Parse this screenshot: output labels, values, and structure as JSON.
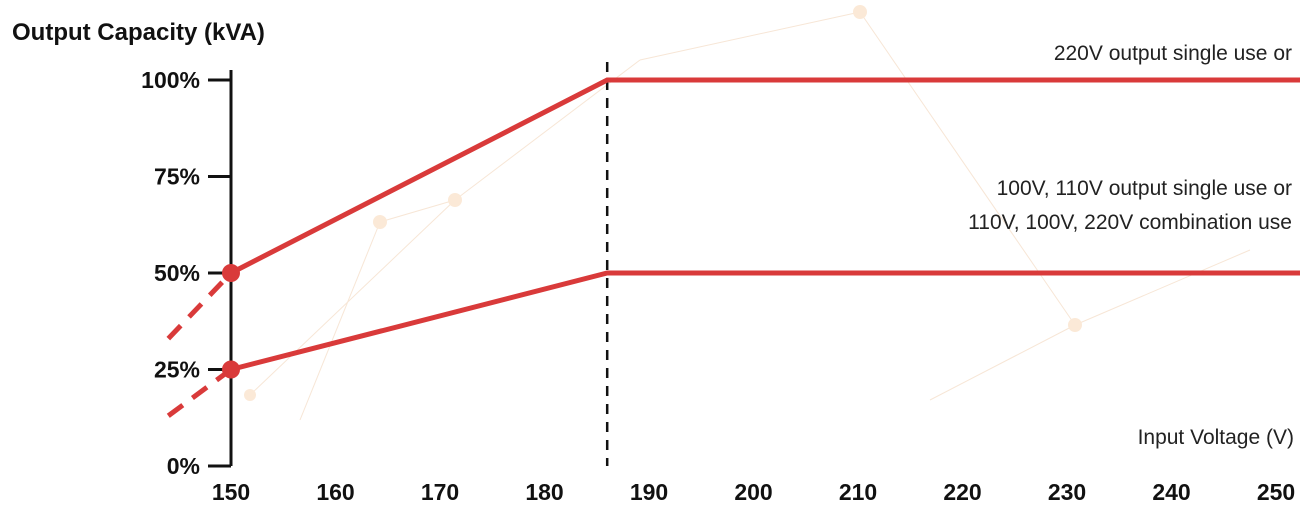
{
  "chart_data": {
    "type": "line",
    "ylabel": "Output Capacity (kVA)",
    "xlabel": "Input Voltage (V)",
    "xlim": [
      150,
      253
    ],
    "ylim": [
      0,
      100
    ],
    "x_ticks": [
      150,
      160,
      170,
      180,
      190,
      200,
      210,
      220,
      230,
      240,
      250
    ],
    "y_ticks": [
      {
        "value": 0,
        "label": "0%"
      },
      {
        "value": 25,
        "label": "25%"
      },
      {
        "value": 50,
        "label": "50%"
      },
      {
        "value": 75,
        "label": "75%"
      },
      {
        "value": 100,
        "label": "100%"
      }
    ],
    "threshold_x": 186,
    "series": [
      {
        "label_lines": [
          "220V output single use or"
        ],
        "color": "#d93a3a",
        "points": [
          [
            150,
            50
          ],
          [
            186,
            100
          ],
          [
            253,
            100
          ]
        ],
        "dashed_extension": [
          [
            144,
            33
          ],
          [
            150,
            50
          ]
        ]
      },
      {
        "label_lines": [
          "100V, 110V output single use or",
          "110V, 100V, 220V combination use"
        ],
        "color": "#d93a3a",
        "points": [
          [
            150,
            25
          ],
          [
            186,
            50
          ],
          [
            253,
            50
          ]
        ],
        "dashed_extension": [
          [
            144,
            13
          ],
          [
            150,
            25
          ]
        ]
      }
    ]
  }
}
